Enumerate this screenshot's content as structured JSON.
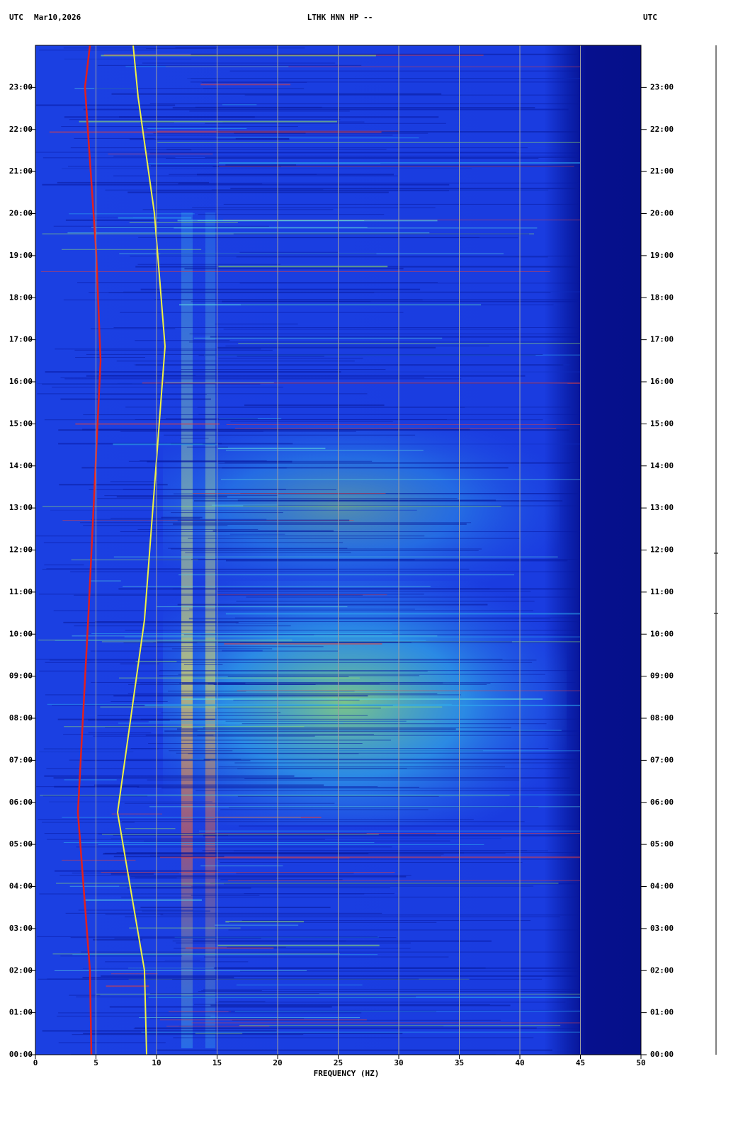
{
  "chart_data": {
    "type": "spectrogram",
    "title": "LTHK HNN HP --",
    "left_header": "UTC",
    "date": "Mar10,2026",
    "right_header": "UTC",
    "xlabel": "FREQUENCY (HZ)",
    "xlim": [
      0,
      50
    ],
    "xticks": [
      0,
      5,
      10,
      15,
      20,
      25,
      30,
      35,
      40,
      45,
      50
    ],
    "ylim": [
      0,
      24
    ],
    "yticks": [
      {
        "value": 0,
        "label": "00:00"
      },
      {
        "value": 1,
        "label": "01:00"
      },
      {
        "value": 2,
        "label": "02:00"
      },
      {
        "value": 3,
        "label": "03:00"
      },
      {
        "value": 4,
        "label": "04:00"
      },
      {
        "value": 5,
        "label": "05:00"
      },
      {
        "value": 6,
        "label": "06:00"
      },
      {
        "value": 7,
        "label": "07:00"
      },
      {
        "value": 8,
        "label": "08:00"
      },
      {
        "value": 9,
        "label": "09:00"
      },
      {
        "value": 10,
        "label": "10:00"
      },
      {
        "value": 11,
        "label": "11:00"
      },
      {
        "value": 12,
        "label": "12:00"
      },
      {
        "value": 13,
        "label": "13:00"
      },
      {
        "value": 14,
        "label": "14:00"
      },
      {
        "value": 15,
        "label": "15:00"
      },
      {
        "value": 16,
        "label": "16:00"
      },
      {
        "value": 17,
        "label": "17:00"
      },
      {
        "value": 18,
        "label": "18:00"
      },
      {
        "value": 19,
        "label": "19:00"
      },
      {
        "value": 20,
        "label": "20:00"
      },
      {
        "value": 21,
        "label": "21:00"
      },
      {
        "value": 22,
        "label": "22:00"
      },
      {
        "value": 23,
        "label": "23:00"
      }
    ],
    "grid": true,
    "grid_color": "#a0a0a0"
  }
}
